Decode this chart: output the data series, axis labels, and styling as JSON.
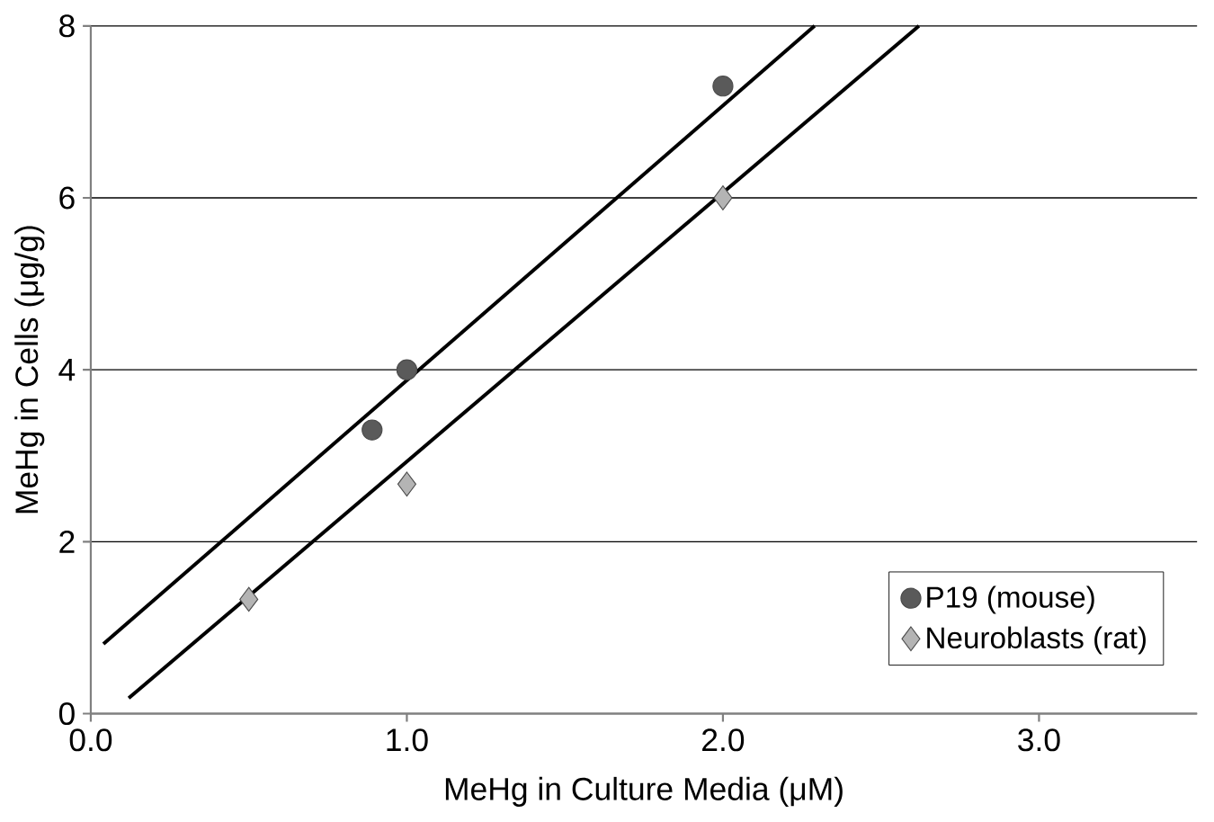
{
  "chart_data": {
    "type": "scatter",
    "xlabel": "MeHg in Culture Media (μM)",
    "ylabel": "MeHg in Cells (μg/g)",
    "xlim": [
      0,
      3.5
    ],
    "xticks": [
      {
        "value": 0,
        "label": "0.0"
      },
      {
        "value": 1,
        "label": "1.0"
      },
      {
        "value": 2,
        "label": "2.0"
      },
      {
        "value": 3,
        "label": "3.0"
      }
    ],
    "ylim": [
      0,
      8
    ],
    "yticks": [
      0,
      2,
      4,
      6,
      8
    ],
    "grid": "y",
    "legend": "bottom right",
    "series": [
      {
        "name": "P19 (mouse)",
        "marker": "circle",
        "color": "#5a5a5a",
        "x": [
          0.89,
          1.0,
          2.0
        ],
        "values": [
          3.3,
          4.0,
          7.3
        ]
      },
      {
        "name": "Neuroblasts (rat)",
        "marker": "diamond",
        "color": "#b4b4b4",
        "x": [
          0.5,
          1.0,
          2.0
        ],
        "values": [
          1.33,
          2.67,
          6.0
        ]
      },
      {
        "type": "line",
        "color": "#000000",
        "x": [
          0.04,
          2.29
        ],
        "values": [
          0.81,
          8.0
        ]
      },
      {
        "type": "line",
        "color": "#000000",
        "x": [
          0.12,
          2.62
        ],
        "values": [
          0.18,
          8.0
        ]
      }
    ]
  }
}
